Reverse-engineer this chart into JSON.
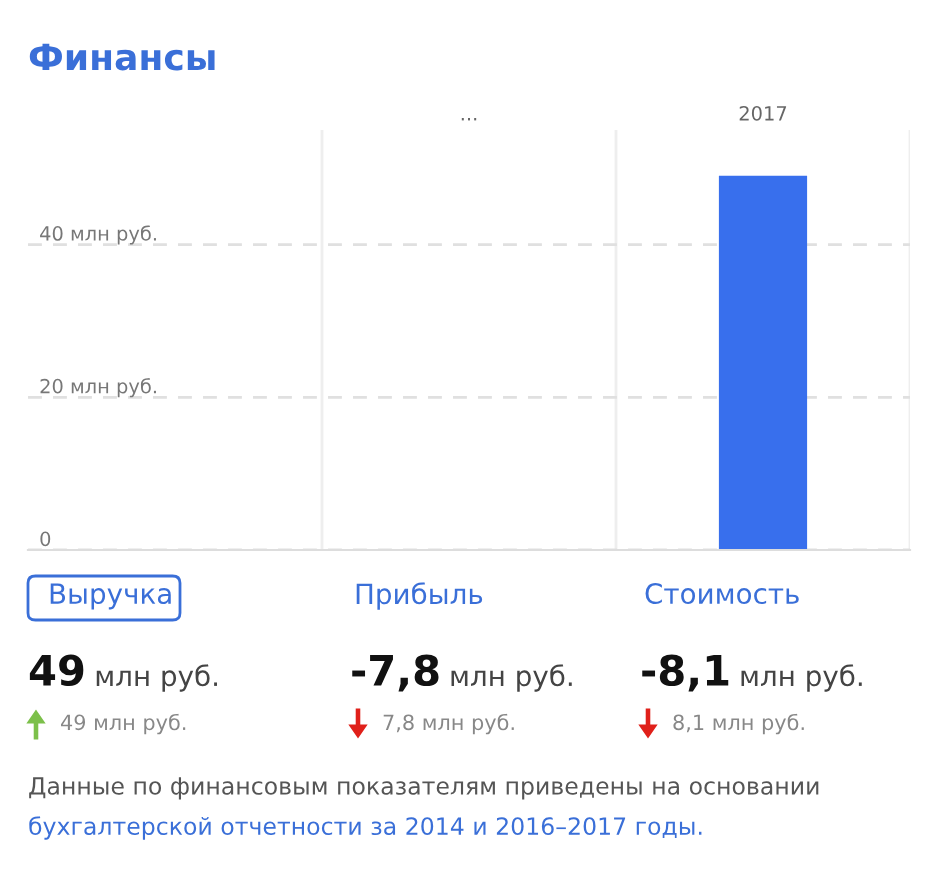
{
  "chart_data": {
    "type": "bar",
    "title": "Финансы",
    "categories": [
      null,
      "...",
      "2017"
    ],
    "series": [
      {
        "color": "#386fed",
        "values": [
          null,
          null,
          49
        ]
      }
    ],
    "ylim": [
      0,
      55
    ],
    "yticks": [
      0,
      {
        "value": 20,
        "label": "20 млн руб."
      },
      {
        "value": 40,
        "label": "40 млн руб."
      }
    ],
    "grid": "y",
    "legend": false,
    "annotations": [
      "Выручка",
      "Прибыль",
      "Стоимость",
      "49",
      "млн руб.",
      "-7,8",
      "млн руб.",
      "-8,1",
      "млн руб.",
      "49 млн руб.",
      "7,8 млн руб.",
      "8,1 млн руб.",
      "Данные по финансовым показателям приведены на основании",
      "бухгалтерской отчетности за 2014 и 2016–2017 годы."
    ]
  }
}
